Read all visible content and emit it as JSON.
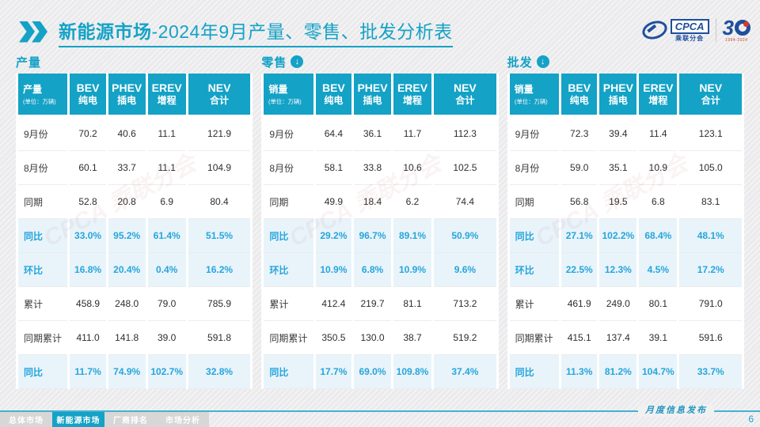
{
  "title": {
    "bold": "新能源市场",
    "rest": "-2024年9月产量、零售、批发分析表"
  },
  "logos": {
    "cpca_word": "CPCA",
    "cpca_sub": "乘联分会",
    "anniv_number": "3",
    "anniv_years": "1994-2024"
  },
  "watermark": "CPCA 乘联分会",
  "unit": "(单位：万辆)",
  "columns": [
    {
      "en": "BEV",
      "zh": "纯电"
    },
    {
      "en": "PHEV",
      "zh": "插电"
    },
    {
      "en": "EREV",
      "zh": "增程"
    },
    {
      "en": "NEV",
      "zh": "合计"
    }
  ],
  "sections": [
    {
      "label": "产量",
      "arrow": false,
      "corner": "产量",
      "rows": [
        {
          "label": "9月份",
          "values": [
            "70.2",
            "40.6",
            "11.1",
            "121.9"
          ],
          "highlight": false
        },
        {
          "label": "8月份",
          "values": [
            "60.1",
            "33.7",
            "11.1",
            "104.9"
          ],
          "highlight": false
        },
        {
          "label": "同期",
          "values": [
            "52.8",
            "20.8",
            "6.9",
            "80.4"
          ],
          "highlight": false
        },
        {
          "label": "同比",
          "values": [
            "33.0%",
            "95.2%",
            "61.4%",
            "51.5%"
          ],
          "highlight": true
        },
        {
          "label": "环比",
          "values": [
            "16.8%",
            "20.4%",
            "0.4%",
            "16.2%"
          ],
          "highlight": true
        },
        {
          "label": "累计",
          "values": [
            "458.9",
            "248.0",
            "79.0",
            "785.9"
          ],
          "highlight": false
        },
        {
          "label": "同期累计",
          "values": [
            "411.0",
            "141.8",
            "39.0",
            "591.8"
          ],
          "highlight": false
        },
        {
          "label": "同比",
          "values": [
            "11.7%",
            "74.9%",
            "102.7%",
            "32.8%"
          ],
          "highlight": true
        }
      ]
    },
    {
      "label": "零售",
      "arrow": true,
      "corner": "销量",
      "rows": [
        {
          "label": "9月份",
          "values": [
            "64.4",
            "36.1",
            "11.7",
            "112.3"
          ],
          "highlight": false
        },
        {
          "label": "8月份",
          "values": [
            "58.1",
            "33.8",
            "10.6",
            "102.5"
          ],
          "highlight": false
        },
        {
          "label": "同期",
          "values": [
            "49.9",
            "18.4",
            "6.2",
            "74.4"
          ],
          "highlight": false
        },
        {
          "label": "同比",
          "values": [
            "29.2%",
            "96.7%",
            "89.1%",
            "50.9%"
          ],
          "highlight": true
        },
        {
          "label": "环比",
          "values": [
            "10.9%",
            "6.8%",
            "10.9%",
            "9.6%"
          ],
          "highlight": true
        },
        {
          "label": "累计",
          "values": [
            "412.4",
            "219.7",
            "81.1",
            "713.2"
          ],
          "highlight": false
        },
        {
          "label": "同期累计",
          "values": [
            "350.5",
            "130.0",
            "38.7",
            "519.2"
          ],
          "highlight": false
        },
        {
          "label": "同比",
          "values": [
            "17.7%",
            "69.0%",
            "109.8%",
            "37.4%"
          ],
          "highlight": true
        }
      ]
    },
    {
      "label": "批发",
      "arrow": true,
      "corner": "销量",
      "rows": [
        {
          "label": "9月份",
          "values": [
            "72.3",
            "39.4",
            "11.4",
            "123.1"
          ],
          "highlight": false
        },
        {
          "label": "8月份",
          "values": [
            "59.0",
            "35.1",
            "10.9",
            "105.0"
          ],
          "highlight": false
        },
        {
          "label": "同期",
          "values": [
            "56.8",
            "19.5",
            "6.8",
            "83.1"
          ],
          "highlight": false
        },
        {
          "label": "同比",
          "values": [
            "27.1%",
            "102.2%",
            "68.4%",
            "48.1%"
          ],
          "highlight": true
        },
        {
          "label": "环比",
          "values": [
            "22.5%",
            "12.3%",
            "4.5%",
            "17.2%"
          ],
          "highlight": true
        },
        {
          "label": "累计",
          "values": [
            "461.9",
            "249.0",
            "80.1",
            "791.0"
          ],
          "highlight": false
        },
        {
          "label": "同期累计",
          "values": [
            "415.1",
            "137.4",
            "39.1",
            "591.6"
          ],
          "highlight": false
        },
        {
          "label": "同比",
          "values": [
            "11.3%",
            "81.2%",
            "104.7%",
            "33.7%"
          ],
          "highlight": true
        }
      ]
    }
  ],
  "footer": {
    "tabs": [
      {
        "label": "总体市场",
        "active": false
      },
      {
        "label": "新能源市场",
        "active": true
      },
      {
        "label": "厂商排名",
        "active": false
      },
      {
        "label": "市场分析",
        "active": false
      }
    ],
    "release_label": "月度信息发布",
    "page_number": "6"
  },
  "colors": {
    "accent_teal": "#14a2c6",
    "highlight_text": "#27a5dc",
    "highlight_bg": "#e8f4fa",
    "logo_blue": "#1f4e9c",
    "logo_red": "#d43d2a",
    "page_bg": "#f1f1f2"
  }
}
